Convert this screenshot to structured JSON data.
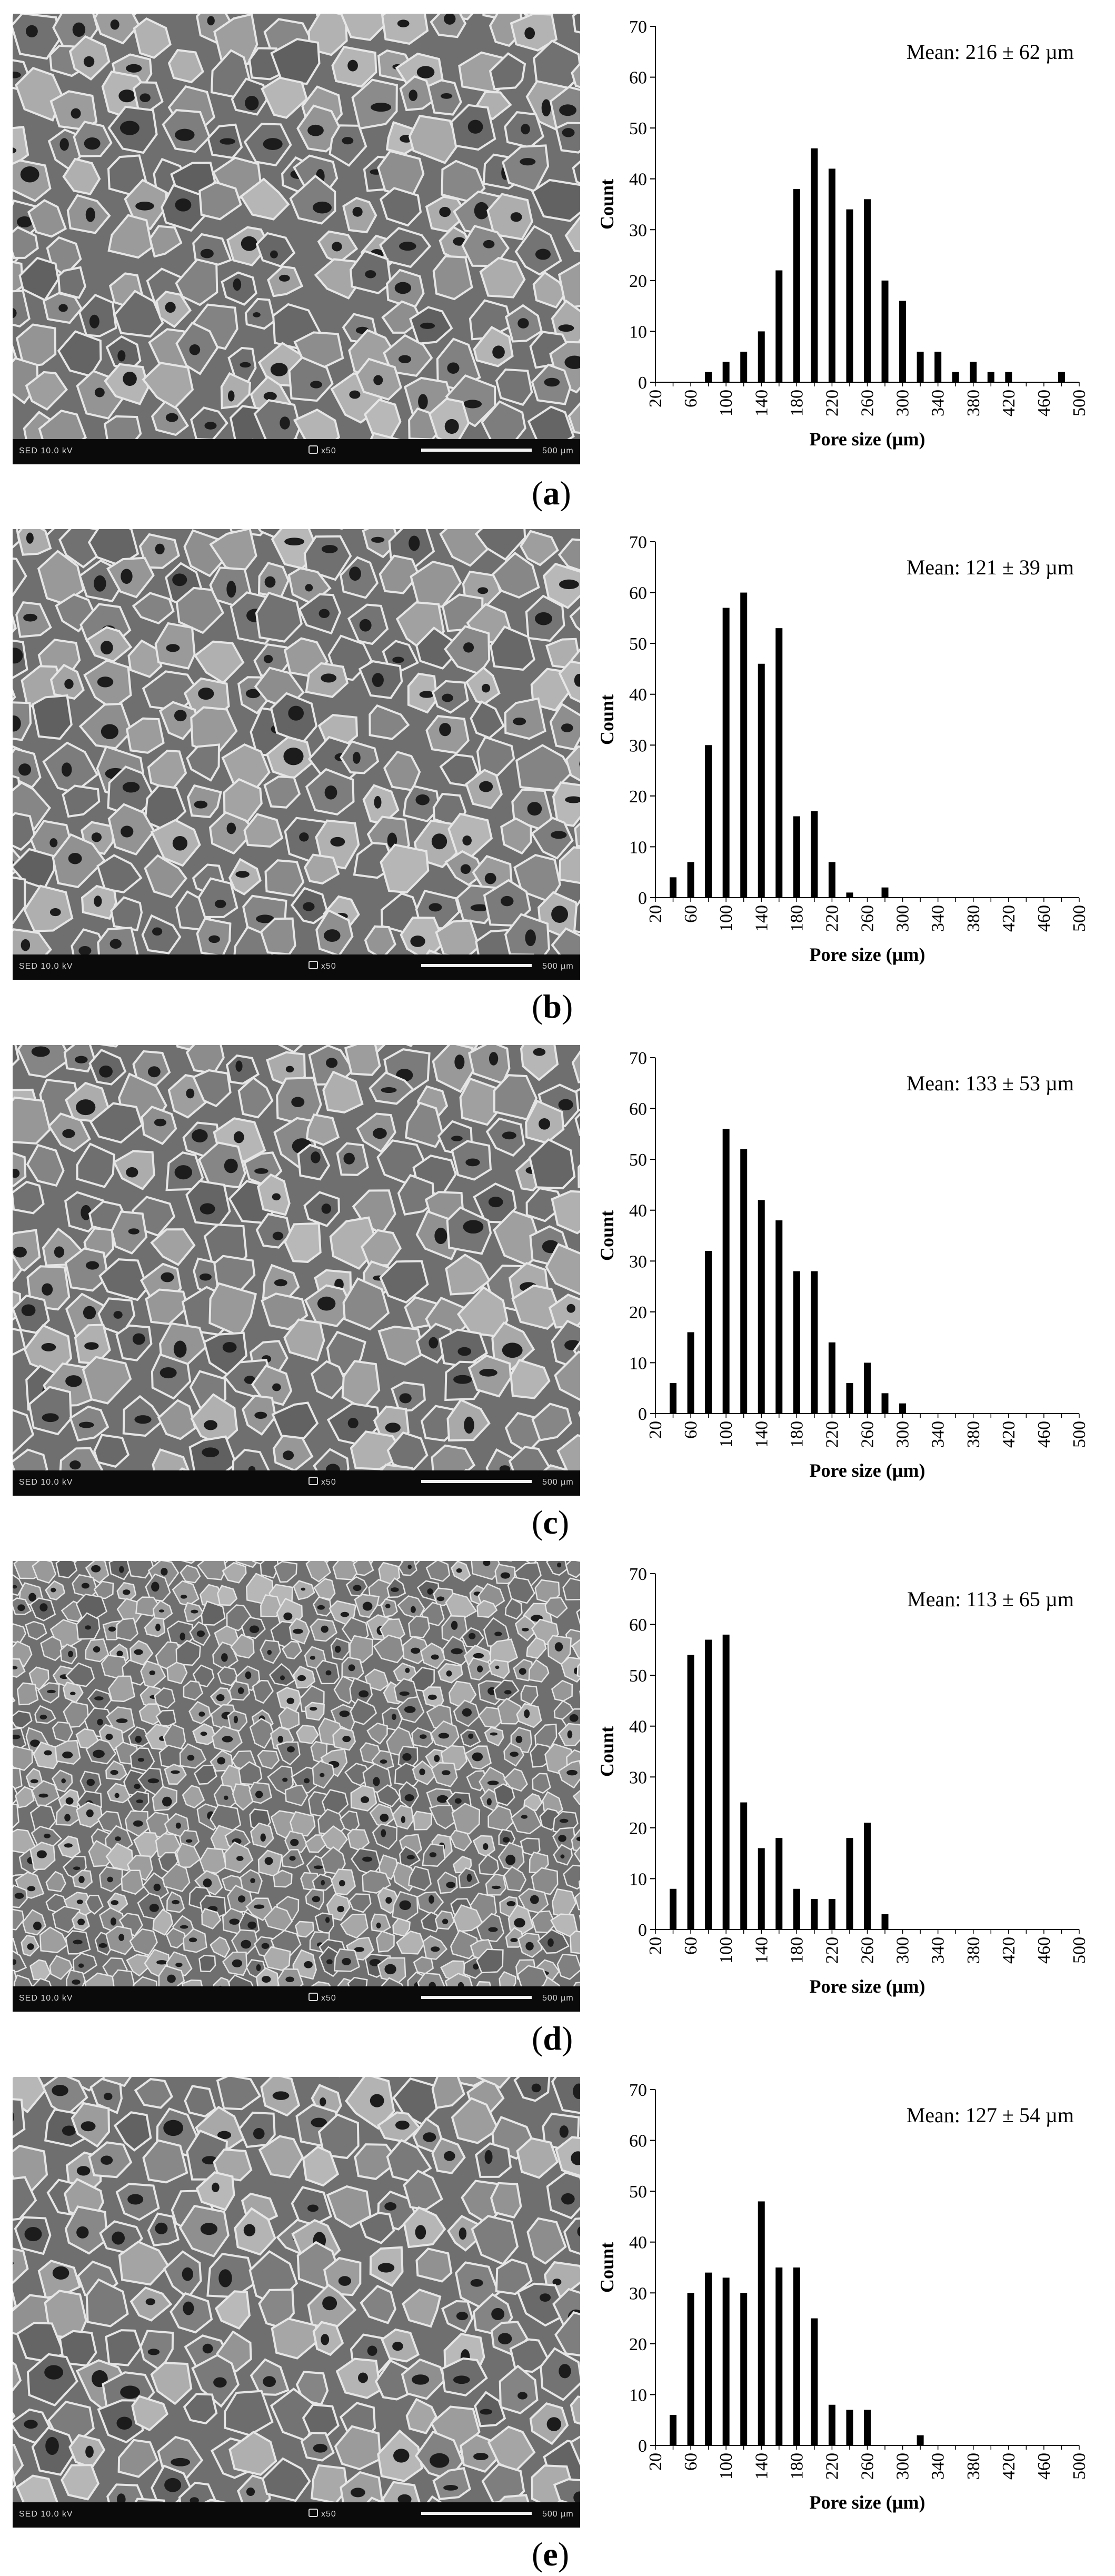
{
  "panels": [
    {
      "letter": "a",
      "sem": {
        "left_text": "SED    10.0 kV",
        "mag_text": "x50",
        "scale_text": "500 µm"
      },
      "chart_data": {
        "type": "bar",
        "categories": [
          "20",
          "40",
          "60",
          "80",
          "100",
          "120",
          "140",
          "160",
          "180",
          "200",
          "220",
          "240",
          "260",
          "280",
          "300",
          "320",
          "340",
          "360",
          "380",
          "400",
          "420",
          "440",
          "460",
          "480",
          "500"
        ],
        "values": [
          0,
          0,
          0,
          2,
          4,
          6,
          10,
          22,
          38,
          46,
          42,
          34,
          36,
          20,
          16,
          6,
          6,
          2,
          4,
          2,
          2,
          0,
          0,
          2,
          0
        ],
        "tick_labels": [
          "20",
          "60",
          "100",
          "140",
          "180",
          "220",
          "260",
          "300",
          "340",
          "380",
          "420",
          "460",
          "500"
        ],
        "yticks": [
          "0",
          "10",
          "20",
          "30",
          "40",
          "50",
          "60",
          "70"
        ],
        "ylim": [
          0,
          70
        ],
        "xlabel": "Pore size (µm)",
        "ylabel": "Count",
        "annotation": "Mean: 216 ± 62 µm"
      }
    },
    {
      "letter": "b",
      "sem": {
        "left_text": "SED    10.0 kV",
        "mag_text": "x50",
        "scale_text": "500 µm"
      },
      "chart_data": {
        "type": "bar",
        "categories": [
          "20",
          "40",
          "60",
          "80",
          "100",
          "120",
          "140",
          "160",
          "180",
          "200",
          "220",
          "240",
          "260",
          "280",
          "300",
          "320",
          "340",
          "360",
          "380",
          "400",
          "420",
          "440",
          "460",
          "480",
          "500"
        ],
        "values": [
          0,
          4,
          7,
          30,
          57,
          60,
          46,
          53,
          16,
          17,
          7,
          1,
          0,
          2,
          0,
          0,
          0,
          0,
          0,
          0,
          0,
          0,
          0,
          0,
          0
        ],
        "tick_labels": [
          "20",
          "60",
          "100",
          "140",
          "180",
          "220",
          "260",
          "300",
          "340",
          "380",
          "420",
          "460",
          "500"
        ],
        "yticks": [
          "0",
          "10",
          "20",
          "30",
          "40",
          "50",
          "60",
          "70"
        ],
        "ylim": [
          0,
          70
        ],
        "xlabel": "Pore size (µm)",
        "ylabel": "Count",
        "annotation": "Mean: 121 ± 39 µm"
      }
    },
    {
      "letter": "c",
      "sem": {
        "left_text": "SED    10.0 kV",
        "mag_text": "x50",
        "scale_text": "500 µm"
      },
      "chart_data": {
        "type": "bar",
        "categories": [
          "20",
          "40",
          "60",
          "80",
          "100",
          "120",
          "140",
          "160",
          "180",
          "200",
          "220",
          "240",
          "260",
          "280",
          "300",
          "320",
          "340",
          "360",
          "380",
          "400",
          "420",
          "440",
          "460",
          "480",
          "500"
        ],
        "values": [
          0,
          6,
          16,
          32,
          56,
          52,
          42,
          38,
          28,
          28,
          14,
          6,
          10,
          4,
          2,
          0,
          0,
          0,
          0,
          0,
          0,
          0,
          0,
          0,
          0
        ],
        "tick_labels": [
          "20",
          "60",
          "100",
          "140",
          "180",
          "220",
          "260",
          "300",
          "340",
          "380",
          "420",
          "460",
          "500"
        ],
        "yticks": [
          "0",
          "10",
          "20",
          "30",
          "40",
          "50",
          "60",
          "70"
        ],
        "ylim": [
          0,
          70
        ],
        "xlabel": "Pore size (µm)",
        "ylabel": "Count",
        "annotation": "Mean: 133 ± 53 µm"
      }
    },
    {
      "letter": "d",
      "sem": {
        "left_text": "SED    10.0 kV",
        "mag_text": "x50",
        "scale_text": "500 µm"
      },
      "chart_data": {
        "type": "bar",
        "categories": [
          "20",
          "40",
          "60",
          "80",
          "100",
          "120",
          "140",
          "160",
          "180",
          "200",
          "220",
          "240",
          "260",
          "280",
          "300",
          "320",
          "340",
          "360",
          "380",
          "400",
          "420",
          "440",
          "460",
          "480",
          "500"
        ],
        "values": [
          0,
          8,
          54,
          57,
          58,
          25,
          16,
          18,
          8,
          6,
          6,
          18,
          21,
          3,
          0,
          0,
          0,
          0,
          0,
          0,
          0,
          0,
          0,
          0,
          0
        ],
        "tick_labels": [
          "20",
          "60",
          "100",
          "140",
          "180",
          "220",
          "260",
          "300",
          "340",
          "380",
          "420",
          "460",
          "500"
        ],
        "yticks": [
          "0",
          "10",
          "20",
          "30",
          "40",
          "50",
          "60",
          "70"
        ],
        "ylim": [
          0,
          70
        ],
        "xlabel": "Pore size (µm)",
        "ylabel": "Count",
        "annotation": "Mean: 113 ± 65 µm"
      }
    },
    {
      "letter": "e",
      "sem": {
        "left_text": "SED    10.0 kV",
        "mag_text": "x50",
        "scale_text": "500 µm"
      },
      "chart_data": {
        "type": "bar",
        "categories": [
          "20",
          "40",
          "60",
          "80",
          "100",
          "120",
          "140",
          "160",
          "180",
          "200",
          "220",
          "240",
          "260",
          "280",
          "300",
          "320",
          "340",
          "360",
          "380",
          "400",
          "420",
          "440",
          "460",
          "480",
          "500"
        ],
        "values": [
          0,
          6,
          30,
          34,
          33,
          30,
          48,
          35,
          35,
          25,
          8,
          7,
          7,
          0,
          0,
          2,
          0,
          0,
          0,
          0,
          0,
          0,
          0,
          0,
          0
        ],
        "tick_labels": [
          "20",
          "60",
          "100",
          "140",
          "180",
          "220",
          "260",
          "300",
          "340",
          "380",
          "420",
          "460",
          "500"
        ],
        "yticks": [
          "0",
          "10",
          "20",
          "30",
          "40",
          "50",
          "60",
          "70"
        ],
        "ylim": [
          0,
          70
        ],
        "xlabel": "Pore size (µm)",
        "ylabel": "Count",
        "annotation": "Mean: 127 ± 54 µm"
      }
    }
  ]
}
